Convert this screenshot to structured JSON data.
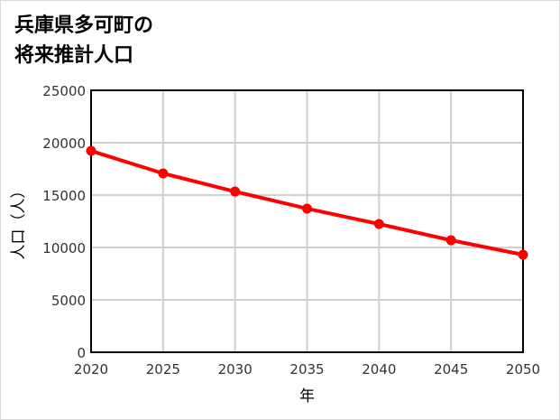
{
  "title_line1": "兵庫県多可町の",
  "title_line2": "将来推計人口",
  "chart_data": {
    "type": "line",
    "title": "兵庫県多可町の将来推計人口",
    "xlabel": "年",
    "ylabel": "人口（人）",
    "categories": [
      2020,
      2025,
      2030,
      2035,
      2040,
      2045,
      2050
    ],
    "series": [
      {
        "name": "人口",
        "color": "#ff0000",
        "values": [
          19220,
          17070,
          15340,
          13710,
          12240,
          10690,
          9310
        ]
      }
    ],
    "ylim": [
      0,
      25000
    ],
    "yticks": [
      0,
      5000,
      10000,
      15000,
      20000,
      25000
    ],
    "xticks": [
      2020,
      2025,
      2030,
      2035,
      2040,
      2045,
      2050
    ],
    "grid": true,
    "legend": "none"
  }
}
